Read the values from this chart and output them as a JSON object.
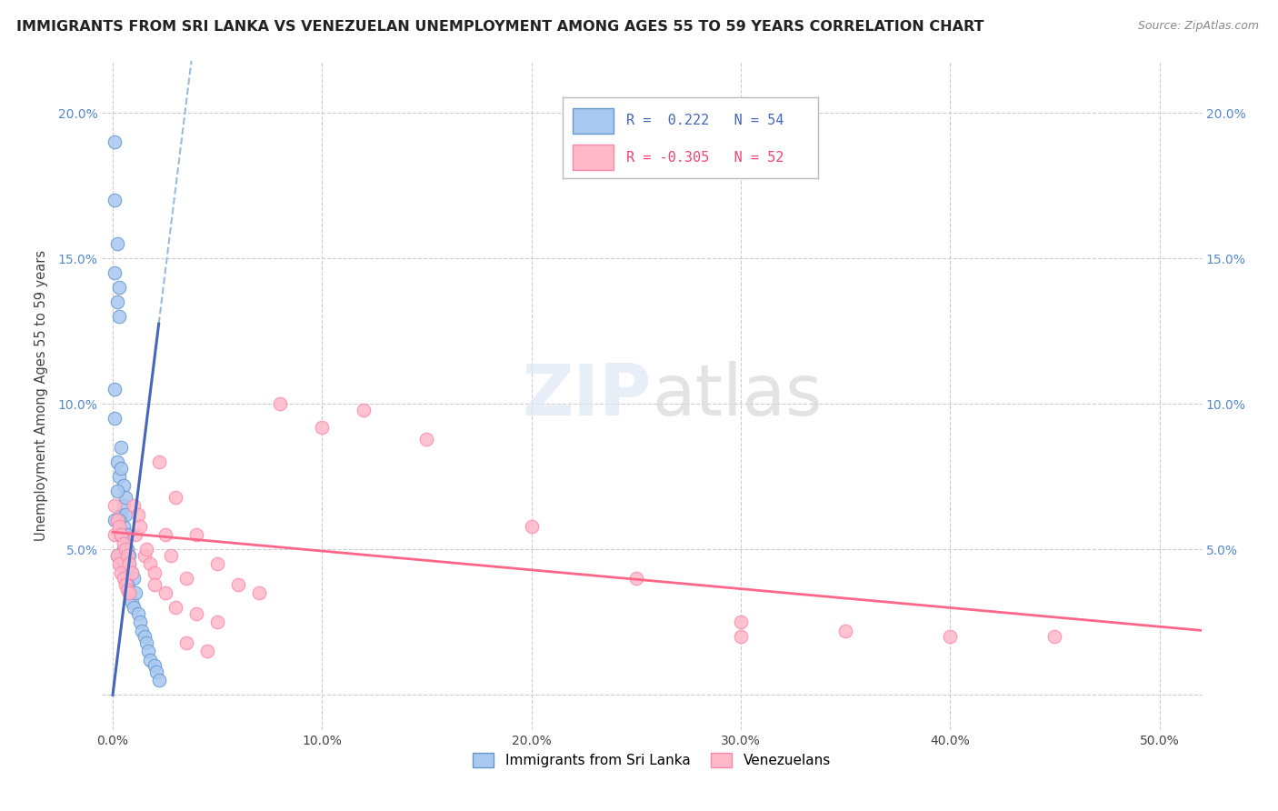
{
  "title": "IMMIGRANTS FROM SRI LANKA VS VENEZUELAN UNEMPLOYMENT AMONG AGES 55 TO 59 YEARS CORRELATION CHART",
  "source": "Source: ZipAtlas.com",
  "ylabel": "Unemployment Among Ages 55 to 59 years",
  "x_ticks": [
    0.0,
    0.1,
    0.2,
    0.3,
    0.4,
    0.5
  ],
  "x_tick_labels": [
    "0.0%",
    "10.0%",
    "20.0%",
    "30.0%",
    "40.0%",
    "50.0%"
  ],
  "y_ticks": [
    0.0,
    0.05,
    0.1,
    0.15,
    0.2
  ],
  "y_tick_labels": [
    "",
    "5.0%",
    "10.0%",
    "15.0%",
    "20.0%"
  ],
  "xlim": [
    -0.005,
    0.52
  ],
  "ylim": [
    -0.012,
    0.218
  ],
  "watermark_zip": "ZIP",
  "watermark_atlas": "atlas",
  "sri_lanka_color_fill": "#a8c8f0",
  "sri_lanka_color_edge": "#6699cc",
  "venezuela_color_fill": "#ffb8c8",
  "venezuela_color_edge": "#ff88aa",
  "sl_trend_solid_color": "#4466bb",
  "sl_trend_dash_color": "#99bbdd",
  "vz_trend_color": "#ff6688",
  "legend_entries": [
    "Immigrants from Sri Lanka",
    "Venezuelans"
  ],
  "sl_x": [
    0.001,
    0.001,
    0.001,
    0.002,
    0.002,
    0.002,
    0.002,
    0.003,
    0.003,
    0.003,
    0.003,
    0.004,
    0.004,
    0.004,
    0.004,
    0.005,
    0.005,
    0.005,
    0.005,
    0.006,
    0.006,
    0.006,
    0.006,
    0.007,
    0.007,
    0.007,
    0.008,
    0.008,
    0.008,
    0.009,
    0.009,
    0.01,
    0.01,
    0.011,
    0.012,
    0.013,
    0.014,
    0.015,
    0.016,
    0.017,
    0.018,
    0.02,
    0.021,
    0.022,
    0.001,
    0.001,
    0.002,
    0.003,
    0.004,
    0.005,
    0.006,
    0.007,
    0.001,
    0.002
  ],
  "sl_y": [
    0.19,
    0.17,
    0.145,
    0.155,
    0.135,
    0.08,
    0.06,
    0.14,
    0.13,
    0.075,
    0.055,
    0.085,
    0.078,
    0.062,
    0.048,
    0.072,
    0.065,
    0.058,
    0.045,
    0.068,
    0.062,
    0.055,
    0.042,
    0.055,
    0.05,
    0.038,
    0.048,
    0.045,
    0.035,
    0.042,
    0.032,
    0.04,
    0.03,
    0.035,
    0.028,
    0.025,
    0.022,
    0.02,
    0.018,
    0.015,
    0.012,
    0.01,
    0.008,
    0.005,
    0.105,
    0.095,
    0.07,
    0.06,
    0.055,
    0.05,
    0.045,
    0.038,
    0.06,
    0.048
  ],
  "vz_x": [
    0.001,
    0.001,
    0.002,
    0.002,
    0.003,
    0.003,
    0.004,
    0.004,
    0.005,
    0.005,
    0.006,
    0.006,
    0.007,
    0.007,
    0.008,
    0.008,
    0.009,
    0.01,
    0.011,
    0.012,
    0.013,
    0.015,
    0.016,
    0.018,
    0.02,
    0.022,
    0.025,
    0.028,
    0.03,
    0.035,
    0.04,
    0.05,
    0.06,
    0.07,
    0.08,
    0.1,
    0.12,
    0.15,
    0.2,
    0.25,
    0.3,
    0.35,
    0.3,
    0.4,
    0.45,
    0.02,
    0.025,
    0.03,
    0.04,
    0.05,
    0.035,
    0.045
  ],
  "vz_y": [
    0.065,
    0.055,
    0.06,
    0.048,
    0.058,
    0.045,
    0.055,
    0.042,
    0.052,
    0.04,
    0.05,
    0.038,
    0.048,
    0.036,
    0.045,
    0.035,
    0.042,
    0.065,
    0.055,
    0.062,
    0.058,
    0.048,
    0.05,
    0.045,
    0.042,
    0.08,
    0.055,
    0.048,
    0.068,
    0.04,
    0.055,
    0.045,
    0.038,
    0.035,
    0.1,
    0.092,
    0.098,
    0.088,
    0.058,
    0.04,
    0.025,
    0.022,
    0.02,
    0.02,
    0.02,
    0.038,
    0.035,
    0.03,
    0.028,
    0.025,
    0.018,
    0.015
  ],
  "sl_trend_x0": 0.0,
  "sl_trend_x_solid_end": 0.022,
  "sl_trend_x_dash_end": 0.32,
  "sl_trend_y_at_0": 0.0,
  "sl_trend_slope": 5.8,
  "vz_trend_x0": 0.0,
  "vz_trend_x_end": 0.52,
  "vz_trend_y_at_0": 0.056,
  "vz_trend_slope": -0.065
}
